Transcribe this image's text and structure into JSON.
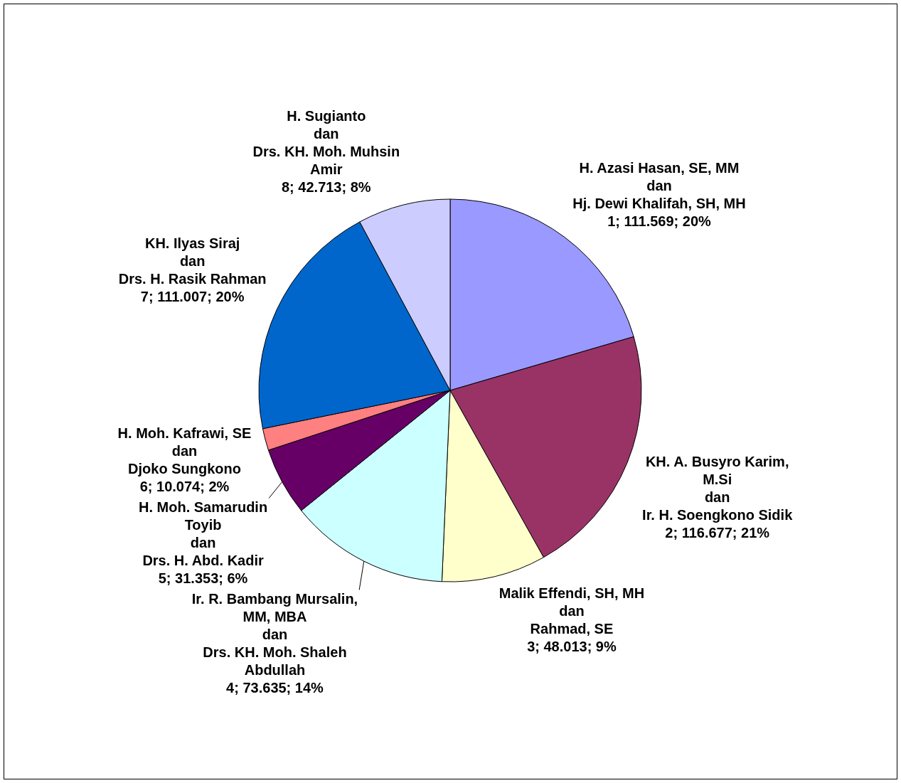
{
  "chart_data": {
    "type": "pie",
    "categories": [
      "H. Azasi Hasan, SE, MM\ndan\nHj. Dewi Khalifah, SH, MH",
      "KH. A. Busyro Karim,\nM.Si\ndan\nIr. H. Soengkono Sidik",
      "Malik Effendi, SH, MH\ndan\nRahmad, SE",
      "Ir. R. Bambang Mursalin,\nMM, MBA\ndan\nDrs. KH. Moh. Shaleh\nAbdullah",
      "H. Moh. Samarudin\nToyib\ndan\nDrs. H. Abd. Kadir",
      "H. Moh. Kafrawi, SE\ndan\nDjoko Sungkono",
      "KH. Ilyas Siraj\ndan\nDrs. H. Rasik Rahman",
      "H. Sugianto\ndan\nDrs. KH. Moh. Muhsin\nAmir"
    ],
    "values": [
      111569,
      116677,
      48013,
      73635,
      31353,
      10074,
      111007,
      42713
    ],
    "colors": [
      "#9999ff",
      "#993366",
      "#ffffcc",
      "#ccffff",
      "#660066",
      "#ff8080",
      "#0066cc",
      "#ccccff"
    ],
    "value_labels": [
      "1; 111.569; 20%",
      "2; 116.677; 21%",
      "3; 48.013; 9%",
      "4; 73.635; 14%",
      "5; 31.353; 6%",
      "6; 10.074; 2%",
      "7; 111.007; 20%",
      "8; 42.713; 8%"
    ]
  }
}
